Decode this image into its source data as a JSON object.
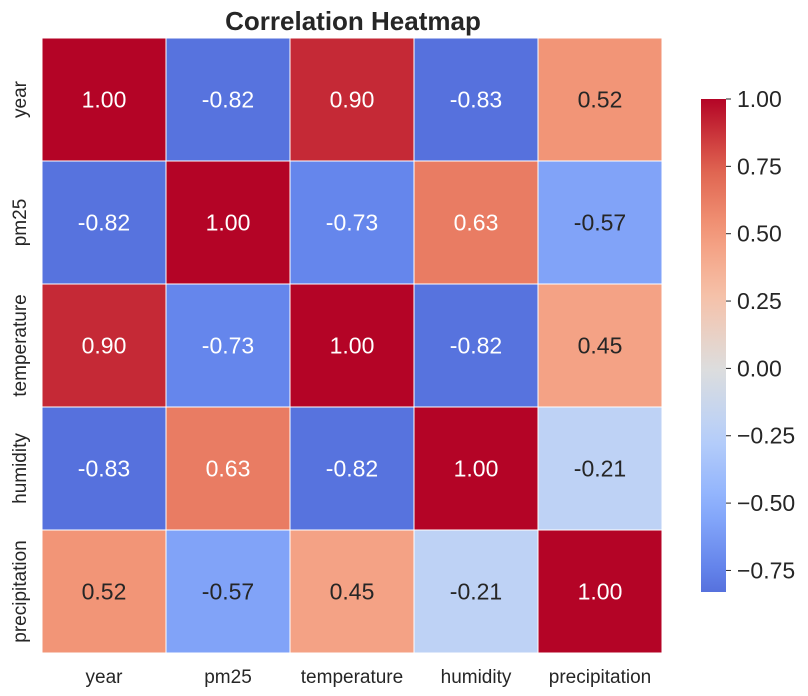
{
  "chart_data": {
    "type": "heatmap",
    "title": "Correlation Heatmap",
    "rows": [
      "year",
      "pm25",
      "temperature",
      "humidity",
      "precipitation"
    ],
    "columns": [
      "year",
      "pm25",
      "temperature",
      "humidity",
      "precipitation"
    ],
    "values": [
      [
        1.0,
        -0.82,
        0.9,
        -0.83,
        0.52
      ],
      [
        -0.82,
        1.0,
        -0.73,
        0.63,
        -0.57
      ],
      [
        0.9,
        -0.73,
        1.0,
        -0.82,
        0.45
      ],
      [
        -0.83,
        0.63,
        -0.82,
        1.0,
        -0.21
      ],
      [
        0.52,
        -0.57,
        0.45,
        -0.21,
        1.0
      ]
    ],
    "colormap": "coolwarm",
    "colorbar": {
      "range": [
        -0.83,
        1.0
      ],
      "ticks": [
        1.0,
        0.75,
        0.5,
        0.25,
        0.0,
        -0.25,
        -0.5,
        -0.75
      ],
      "tick_labels": [
        "1.00",
        "0.75",
        "0.50",
        "0.25",
        "0.00",
        "−0.25",
        "−0.50",
        "−0.75"
      ]
    },
    "xlabel": "",
    "ylabel": ""
  }
}
